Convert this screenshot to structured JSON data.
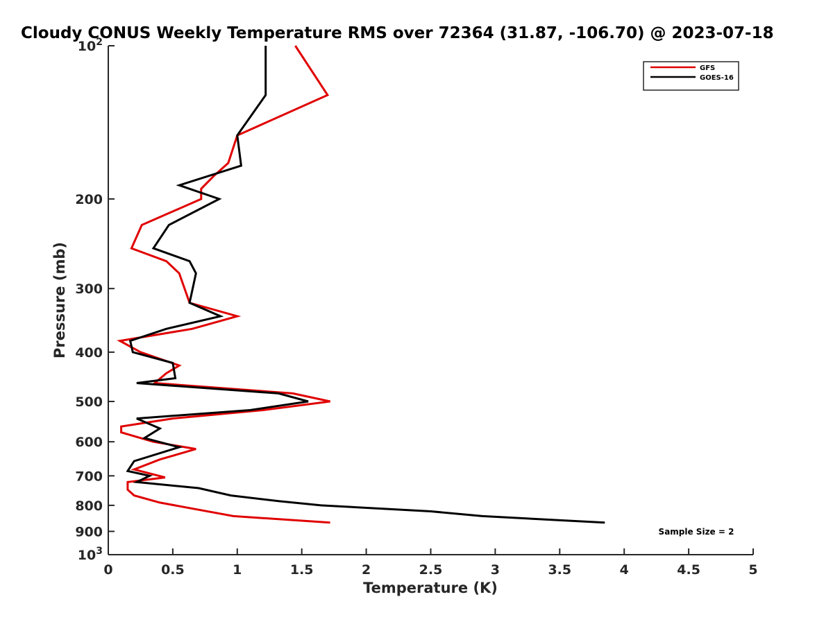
{
  "chart_data": {
    "type": "line",
    "title": "Cloudy CONUS Weekly Temperature RMS over 72364 (31.87, -106.70) @ 2023-07-18",
    "xlabel": "Temperature (K)",
    "ylabel": "Pressure (mb)",
    "xlim": [
      0,
      5
    ],
    "ylim": [
      100,
      1000
    ],
    "y_scale": "log",
    "y_reversed": true,
    "grid": false,
    "legend_position": "top-right",
    "x_ticks": [
      {
        "value": 0,
        "label": "0"
      },
      {
        "value": 0.5,
        "label": "0.5"
      },
      {
        "value": 1,
        "label": "1"
      },
      {
        "value": 1.5,
        "label": "1.5"
      },
      {
        "value": 2,
        "label": "2"
      },
      {
        "value": 2.5,
        "label": "2.5"
      },
      {
        "value": 3,
        "label": "3"
      },
      {
        "value": 3.5,
        "label": "3.5"
      },
      {
        "value": 4,
        "label": "4"
      },
      {
        "value": 4.5,
        "label": "4.5"
      },
      {
        "value": 5,
        "label": "5"
      }
    ],
    "y_ticks": [
      {
        "value": 100,
        "label": "10",
        "sup": "2"
      },
      {
        "value": 200,
        "label": "200",
        "sup": ""
      },
      {
        "value": 300,
        "label": "300",
        "sup": ""
      },
      {
        "value": 400,
        "label": "400",
        "sup": ""
      },
      {
        "value": 500,
        "label": "500",
        "sup": ""
      },
      {
        "value": 600,
        "label": "600",
        "sup": ""
      },
      {
        "value": 700,
        "label": "700",
        "sup": ""
      },
      {
        "value": 800,
        "label": "800",
        "sup": ""
      },
      {
        "value": 900,
        "label": "900",
        "sup": ""
      },
      {
        "value": 1000,
        "label": "10",
        "sup": "3"
      }
    ],
    "series": [
      {
        "name": "GFS",
        "color": "#e00000",
        "points": [
          [
            1.45,
            100
          ],
          [
            1.7,
            125
          ],
          [
            1.0,
            150
          ],
          [
            0.93,
            170
          ],
          [
            0.82,
            180
          ],
          [
            0.72,
            191
          ],
          [
            0.72,
            200
          ],
          [
            0.26,
            225
          ],
          [
            0.18,
            250
          ],
          [
            0.45,
            265
          ],
          [
            0.55,
            280
          ],
          [
            0.63,
            320
          ],
          [
            1.0,
            340
          ],
          [
            0.65,
            360
          ],
          [
            0.09,
            380
          ],
          [
            0.25,
            400
          ],
          [
            0.55,
            425
          ],
          [
            0.45,
            440
          ],
          [
            0.36,
            460
          ],
          [
            1.43,
            482
          ],
          [
            1.72,
            500
          ],
          [
            1.2,
            520
          ],
          [
            0.5,
            540
          ],
          [
            0.1,
            560
          ],
          [
            0.1,
            575
          ],
          [
            0.35,
            600
          ],
          [
            0.68,
            620
          ],
          [
            0.4,
            650
          ],
          [
            0.2,
            680
          ],
          [
            0.44,
            705
          ],
          [
            0.15,
            720
          ],
          [
            0.15,
            745
          ],
          [
            0.2,
            765
          ],
          [
            0.4,
            790
          ],
          [
            0.63,
            810
          ],
          [
            0.97,
            840
          ],
          [
            1.72,
            865
          ]
        ]
      },
      {
        "name": "GOES-16",
        "color": "#000000",
        "points": [
          [
            1.22,
            100
          ],
          [
            1.22,
            125
          ],
          [
            1.0,
            150
          ],
          [
            1.03,
            172
          ],
          [
            0.55,
            188
          ],
          [
            0.86,
            200
          ],
          [
            0.47,
            225
          ],
          [
            0.35,
            250
          ],
          [
            0.63,
            265
          ],
          [
            0.68,
            280
          ],
          [
            0.63,
            320
          ],
          [
            0.87,
            340
          ],
          [
            0.45,
            360
          ],
          [
            0.17,
            380
          ],
          [
            0.19,
            400
          ],
          [
            0.5,
            420
          ],
          [
            0.52,
            450
          ],
          [
            0.22,
            460
          ],
          [
            1.32,
            482
          ],
          [
            1.55,
            500
          ],
          [
            1.1,
            520
          ],
          [
            0.22,
            540
          ],
          [
            0.4,
            565
          ],
          [
            0.28,
            590
          ],
          [
            0.55,
            615
          ],
          [
            0.2,
            655
          ],
          [
            0.15,
            685
          ],
          [
            0.32,
            700
          ],
          [
            0.22,
            720
          ],
          [
            0.7,
            740
          ],
          [
            0.95,
            765
          ],
          [
            1.32,
            785
          ],
          [
            1.65,
            800
          ],
          [
            2.5,
            822
          ],
          [
            2.9,
            840
          ],
          [
            3.85,
            865
          ]
        ]
      }
    ],
    "annotations": [
      {
        "text": "Sample Size = 2"
      }
    ]
  }
}
